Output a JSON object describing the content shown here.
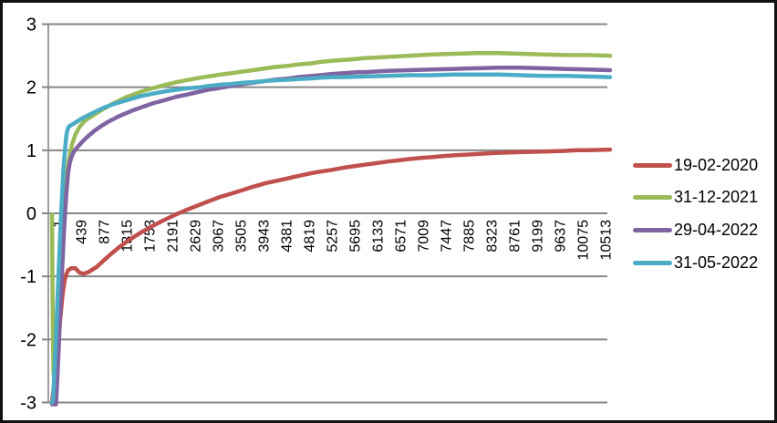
{
  "colors": {
    "background": "#FFFFFF",
    "frame": "#111111",
    "gridline": "#878787",
    "axis_line": "#878787",
    "axis_text": "#000000",
    "series_red": "#C0504D",
    "series_green": "#9BBB59",
    "series_purple": "#8064A2",
    "series_teal": "#4BACC6"
  },
  "chart_data": {
    "type": "line",
    "title": "",
    "xlabel": "",
    "ylabel": "",
    "grid": "horizontal",
    "legend_position": "right",
    "y_axis": {
      "min": -3,
      "max": 3,
      "ticks": [
        "3",
        "2",
        "1",
        "0",
        "-1",
        "-2",
        "-3"
      ],
      "tick_values": [
        3,
        2,
        1,
        0,
        -1,
        -2,
        -3
      ]
    },
    "x_axis": {
      "tick_labels": [
        "1",
        "439",
        "877",
        "1315",
        "1753",
        "2191",
        "2629",
        "3067",
        "3505",
        "3943",
        "4381",
        "4819",
        "5257",
        "5695",
        "6133",
        "6571",
        "7009",
        "7447",
        "7885",
        "8323",
        "8761",
        "9199",
        "9637",
        "10075",
        "10513"
      ],
      "labels_rotated_degrees": -90,
      "data_min": 1,
      "data_max": 10950
    },
    "series": [
      {
        "name": "19-02-2020",
        "color": "#C0504D",
        "points": [
          [
            1,
            -3.0
          ],
          [
            60,
            -2.6
          ],
          [
            110,
            -2.15
          ],
          [
            160,
            -1.7
          ],
          [
            205,
            -1.32
          ],
          [
            240,
            -1.1
          ],
          [
            275,
            -0.98
          ],
          [
            320,
            -0.9
          ],
          [
            380,
            -0.87
          ],
          [
            460,
            -0.87
          ],
          [
            540,
            -0.94
          ],
          [
            620,
            -0.96
          ],
          [
            720,
            -0.93
          ],
          [
            877,
            -0.85
          ],
          [
            1000,
            -0.76
          ],
          [
            1150,
            -0.65
          ],
          [
            1315,
            -0.54
          ],
          [
            1500,
            -0.43
          ],
          [
            1753,
            -0.3
          ],
          [
            2000,
            -0.19
          ],
          [
            2191,
            -0.11
          ],
          [
            2400,
            -0.03
          ],
          [
            2629,
            0.05
          ],
          [
            2850,
            0.12
          ],
          [
            3067,
            0.19
          ],
          [
            3300,
            0.26
          ],
          [
            3505,
            0.31
          ],
          [
            3750,
            0.37
          ],
          [
            3943,
            0.42
          ],
          [
            4200,
            0.48
          ],
          [
            4381,
            0.51
          ],
          [
            4600,
            0.55
          ],
          [
            4819,
            0.59
          ],
          [
            5050,
            0.63
          ],
          [
            5257,
            0.66
          ],
          [
            5500,
            0.69
          ],
          [
            5695,
            0.72
          ],
          [
            5950,
            0.75
          ],
          [
            6133,
            0.77
          ],
          [
            6400,
            0.8
          ],
          [
            6571,
            0.82
          ],
          [
            6800,
            0.84
          ],
          [
            7009,
            0.86
          ],
          [
            7250,
            0.88
          ],
          [
            7447,
            0.89
          ],
          [
            7700,
            0.91
          ],
          [
            7885,
            0.92
          ],
          [
            8100,
            0.93
          ],
          [
            8323,
            0.94
          ],
          [
            8550,
            0.95
          ],
          [
            8761,
            0.96
          ],
          [
            9199,
            0.97
          ],
          [
            9637,
            0.98
          ],
          [
            10075,
            0.99
          ],
          [
            10300,
            1.0
          ],
          [
            10513,
            1.0
          ],
          [
            10950,
            1.01
          ]
        ]
      },
      {
        "name": "31-12-2021",
        "color": "#9BBB59",
        "points": [
          [
            1,
            -0.02
          ],
          [
            10,
            -1.0
          ],
          [
            20,
            -2.0
          ],
          [
            30,
            -2.5
          ],
          [
            45,
            -2.62
          ],
          [
            60,
            -2.45
          ],
          [
            80,
            -2.1
          ],
          [
            105,
            -1.65
          ],
          [
            130,
            -1.2
          ],
          [
            160,
            -0.7
          ],
          [
            195,
            -0.25
          ],
          [
            235,
            0.2
          ],
          [
            280,
            0.55
          ],
          [
            330,
            0.85
          ],
          [
            390,
            1.08
          ],
          [
            460,
            1.25
          ],
          [
            550,
            1.38
          ],
          [
            650,
            1.47
          ],
          [
            800,
            1.55
          ],
          [
            1000,
            1.65
          ],
          [
            1200,
            1.74
          ],
          [
            1450,
            1.84
          ],
          [
            1753,
            1.93
          ],
          [
            2000,
            1.99
          ],
          [
            2191,
            2.03
          ],
          [
            2450,
            2.08
          ],
          [
            2629,
            2.11
          ],
          [
            2900,
            2.15
          ],
          [
            3067,
            2.17
          ],
          [
            3300,
            2.2
          ],
          [
            3505,
            2.22
          ],
          [
            3750,
            2.25
          ],
          [
            3943,
            2.27
          ],
          [
            4200,
            2.3
          ],
          [
            4381,
            2.32
          ],
          [
            4650,
            2.34
          ],
          [
            4819,
            2.36
          ],
          [
            5100,
            2.38
          ],
          [
            5257,
            2.4
          ],
          [
            5500,
            2.42
          ],
          [
            5695,
            2.43
          ],
          [
            6000,
            2.45
          ],
          [
            6133,
            2.46
          ],
          [
            6571,
            2.48
          ],
          [
            7009,
            2.5
          ],
          [
            7447,
            2.52
          ],
          [
            7885,
            2.53
          ],
          [
            8323,
            2.54
          ],
          [
            8761,
            2.54
          ],
          [
            9199,
            2.53
          ],
          [
            9637,
            2.52
          ],
          [
            10075,
            2.51
          ],
          [
            10513,
            2.51
          ],
          [
            10950,
            2.5
          ]
        ]
      },
      {
        "name": "29-04-2022",
        "color": "#8064A2",
        "points": [
          [
            1,
            -3.2
          ],
          [
            80,
            -3.05
          ],
          [
            110,
            -2.55
          ],
          [
            140,
            -2.0
          ],
          [
            170,
            -1.45
          ],
          [
            200,
            -0.9
          ],
          [
            230,
            -0.4
          ],
          [
            260,
            0.05
          ],
          [
            290,
            0.4
          ],
          [
            320,
            0.65
          ],
          [
            350,
            0.8
          ],
          [
            390,
            0.91
          ],
          [
            440,
            0.99
          ],
          [
            510,
            1.06
          ],
          [
            590,
            1.13
          ],
          [
            690,
            1.21
          ],
          [
            820,
            1.3
          ],
          [
            960,
            1.38
          ],
          [
            1100,
            1.45
          ],
          [
            1315,
            1.54
          ],
          [
            1550,
            1.62
          ],
          [
            1753,
            1.68
          ],
          [
            2000,
            1.75
          ],
          [
            2191,
            1.79
          ],
          [
            2450,
            1.85
          ],
          [
            2629,
            1.88
          ],
          [
            2900,
            1.93
          ],
          [
            3067,
            1.96
          ],
          [
            3300,
            1.99
          ],
          [
            3505,
            2.02
          ],
          [
            3750,
            2.05
          ],
          [
            3943,
            2.07
          ],
          [
            4200,
            2.1
          ],
          [
            4381,
            2.12
          ],
          [
            4650,
            2.14
          ],
          [
            4819,
            2.16
          ],
          [
            5100,
            2.18
          ],
          [
            5257,
            2.19
          ],
          [
            5500,
            2.21
          ],
          [
            5695,
            2.22
          ],
          [
            6000,
            2.24
          ],
          [
            6133,
            2.24
          ],
          [
            6571,
            2.26
          ],
          [
            7009,
            2.27
          ],
          [
            7447,
            2.28
          ],
          [
            7885,
            2.29
          ],
          [
            8323,
            2.3
          ],
          [
            8761,
            2.31
          ],
          [
            9199,
            2.31
          ],
          [
            9637,
            2.3
          ],
          [
            10075,
            2.29
          ],
          [
            10513,
            2.28
          ],
          [
            10950,
            2.27
          ]
        ]
      },
      {
        "name": "31-05-2022",
        "color": "#4BACC6",
        "points": [
          [
            1,
            -3.0
          ],
          [
            25,
            -2.95
          ],
          [
            50,
            -2.5
          ],
          [
            80,
            -1.95
          ],
          [
            110,
            -1.35
          ],
          [
            140,
            -0.75
          ],
          [
            170,
            -0.2
          ],
          [
            200,
            0.3
          ],
          [
            230,
            0.75
          ],
          [
            260,
            1.05
          ],
          [
            285,
            1.25
          ],
          [
            310,
            1.34
          ],
          [
            340,
            1.38
          ],
          [
            400,
            1.41
          ],
          [
            480,
            1.45
          ],
          [
            580,
            1.5
          ],
          [
            700,
            1.55
          ],
          [
            850,
            1.61
          ],
          [
            1000,
            1.67
          ],
          [
            1200,
            1.73
          ],
          [
            1450,
            1.79
          ],
          [
            1753,
            1.86
          ],
          [
            2000,
            1.9
          ],
          [
            2191,
            1.93
          ],
          [
            2450,
            1.96
          ],
          [
            2629,
            1.98
          ],
          [
            2900,
            2.0
          ],
          [
            3067,
            2.02
          ],
          [
            3300,
            2.04
          ],
          [
            3505,
            2.05
          ],
          [
            3750,
            2.07
          ],
          [
            3943,
            2.08
          ],
          [
            4200,
            2.1
          ],
          [
            4381,
            2.11
          ],
          [
            4650,
            2.12
          ],
          [
            4819,
            2.13
          ],
          [
            5100,
            2.14
          ],
          [
            5257,
            2.15
          ],
          [
            5500,
            2.16
          ],
          [
            5695,
            2.16
          ],
          [
            6133,
            2.17
          ],
          [
            6571,
            2.18
          ],
          [
            7009,
            2.19
          ],
          [
            7447,
            2.19
          ],
          [
            7885,
            2.2
          ],
          [
            8323,
            2.2
          ],
          [
            8761,
            2.2
          ],
          [
            9199,
            2.19
          ],
          [
            9637,
            2.18
          ],
          [
            10075,
            2.18
          ],
          [
            10513,
            2.17
          ],
          [
            10950,
            2.16
          ]
        ]
      }
    ]
  },
  "legend": {
    "items": [
      {
        "label": "19-02-2020",
        "color": "#C0504D"
      },
      {
        "label": "31-12-2021",
        "color": "#9BBB59"
      },
      {
        "label": "29-04-2022",
        "color": "#8064A2"
      },
      {
        "label": "31-05-2022",
        "color": "#4BACC6"
      }
    ]
  }
}
